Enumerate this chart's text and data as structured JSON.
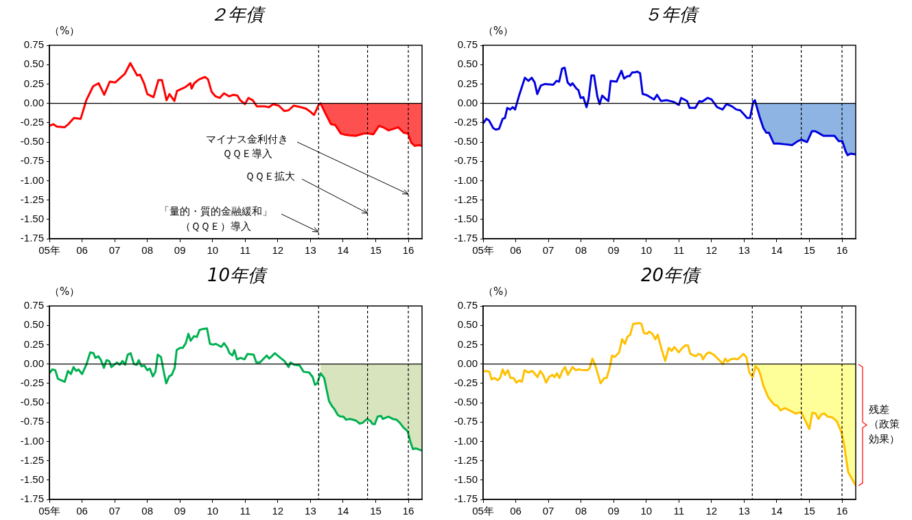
{
  "chart_data": [
    {
      "type": "line",
      "title": "２年債",
      "ylabel": "（%）",
      "xlim": [
        5,
        16.42
      ],
      "ylim": [
        -1.75,
        0.75
      ],
      "xticks": [
        {
          "value": 5,
          "label": "05年"
        },
        {
          "value": 6,
          "label": "06"
        },
        {
          "value": 7,
          "label": "07"
        },
        {
          "value": 8,
          "label": "08"
        },
        {
          "value": 9,
          "label": "09"
        },
        {
          "value": 10,
          "label": "10"
        },
        {
          "value": 11,
          "label": "11"
        },
        {
          "value": 12,
          "label": "12"
        },
        {
          "value": 13,
          "label": "13"
        },
        {
          "value": 14,
          "label": "14"
        },
        {
          "value": 15,
          "label": "15"
        },
        {
          "value": 16,
          "label": "16"
        }
      ],
      "yticks": [
        {
          "value": 0.75,
          "label": "0.75"
        },
        {
          "value": 0.5,
          "label": "0.50"
        },
        {
          "value": 0.25,
          "label": "0.25"
        },
        {
          "value": 0,
          "label": "0.00"
        },
        {
          "value": -0.25,
          "label": "-0.25"
        },
        {
          "value": -0.5,
          "label": "-0.50"
        },
        {
          "value": -0.75,
          "label": "-0.75"
        },
        {
          "value": -1,
          "label": "-1.00"
        },
        {
          "value": -1.25,
          "label": "-1.25"
        },
        {
          "value": -1.5,
          "label": "-1.50"
        },
        {
          "value": -1.75,
          "label": "-1.75"
        }
      ],
      "series": [
        {
          "type": "line",
          "color": "#ff0000",
          "x": [
            5,
            5.12,
            5.23,
            5.46,
            5.58,
            5.75,
            5.96,
            6.13,
            6.34,
            6.51,
            6.68,
            6.85,
            7.02,
            7.31,
            7.48,
            7.69,
            7.78,
            7.9,
            8,
            8.19,
            8.34,
            8.45,
            8.59,
            8.68,
            8.83,
            8.91,
            9.17,
            9.32,
            9.36,
            9.44,
            9.59,
            9.77,
            9.86,
            9.97,
            10.09,
            10.22,
            10.35,
            10.51,
            10.64,
            10.76,
            10.85,
            10.99,
            11.1,
            11.23,
            11.36,
            11.61,
            11.73,
            11.86,
            12.03,
            12.2,
            12.33,
            12.49,
            12.71,
            12.87,
            13,
            13.11,
            13.25,
            13.31,
            13.46,
            13.63,
            13.76,
            13.93,
            14.09,
            14.39,
            14.64,
            14.76,
            14.93,
            15.1,
            15.23,
            15.39,
            15.69,
            15.86,
            15.99,
            16.09,
            16.2,
            16.32,
            16.42
          ],
          "values": [
            -0.29,
            -0.27,
            -0.3,
            -0.31,
            -0.27,
            -0.19,
            -0.2,
            0.04,
            0.22,
            0.26,
            0.11,
            0.28,
            0.27,
            0.38,
            0.52,
            0.36,
            0.37,
            0.26,
            0.12,
            0.08,
            0.3,
            0.3,
            0.04,
            0.12,
            0.03,
            0.16,
            0.21,
            0.26,
            0.19,
            0.26,
            0.31,
            0.34,
            0.31,
            0.15,
            0.09,
            0.07,
            0.13,
            0.09,
            0.11,
            0.1,
            0.04,
            -0.01,
            0.07,
            0.04,
            -0.04,
            -0.04,
            -0.05,
            -0.01,
            -0.03,
            -0.1,
            -0.09,
            -0.03,
            -0.05,
            -0.07,
            -0.11,
            -0.15,
            -0.02,
            0,
            -0.13,
            -0.27,
            -0.28,
            -0.39,
            -0.41,
            -0.42,
            -0.39,
            -0.39,
            -0.4,
            -0.29,
            -0.31,
            -0.35,
            -0.31,
            -0.38,
            -0.39,
            -0.51,
            -0.55,
            -0.54,
            -0.55
          ]
        },
        {
          "type": "area",
          "color": "#ff5050",
          "x": [
            13.25,
            13.31,
            13.46,
            13.63,
            13.76,
            13.93,
            14.09,
            14.39,
            14.64,
            14.76,
            14.93,
            15.1,
            15.23,
            15.39,
            15.69,
            15.86,
            15.99,
            16.09,
            16.2,
            16.32,
            16.42
          ],
          "values": [
            -0.02,
            0,
            -0.13,
            -0.27,
            -0.28,
            -0.39,
            -0.41,
            -0.42,
            -0.39,
            -0.39,
            -0.4,
            -0.29,
            -0.31,
            -0.35,
            -0.31,
            -0.38,
            -0.39,
            -0.51,
            -0.55,
            -0.54,
            -0.55
          ]
        }
      ],
      "ref_lines": [
        {
          "axis": "y",
          "value": 0,
          "color": "#000000",
          "line_style": "solid"
        },
        {
          "axis": "x",
          "value": 13.25,
          "color": "#000000",
          "line_style": "dashed"
        },
        {
          "axis": "x",
          "value": 14.75,
          "color": "#000000",
          "line_style": "dashed"
        },
        {
          "axis": "x",
          "value": 16,
          "color": "#000000",
          "line_style": "dashed"
        }
      ],
      "annotations": [
        {
          "text": "マイナス金利付きＱＱＥ導入",
          "x": 16,
          "y": -1.17
        },
        {
          "text": "ＱＱＥ拡大",
          "x": 14.75,
          "y": -1.42
        },
        {
          "text": "「量的・質的金融緩和」（ＱＱＥ）導入",
          "x": 13.25,
          "y": -1.66
        }
      ]
    },
    {
      "type": "line",
      "title": "５年債",
      "ylabel": "（%）",
      "xlim": [
        5,
        16.42
      ],
      "ylim": [
        -1.75,
        0.75
      ],
      "xticks": [
        {
          "value": 5,
          "label": "05年"
        },
        {
          "value": 6,
          "label": "06"
        },
        {
          "value": 7,
          "label": "07"
        },
        {
          "value": 8,
          "label": "08"
        },
        {
          "value": 9,
          "label": "09"
        },
        {
          "value": 10,
          "label": "10"
        },
        {
          "value": 11,
          "label": "11"
        },
        {
          "value": 12,
          "label": "12"
        },
        {
          "value": 13,
          "label": "13"
        },
        {
          "value": 14,
          "label": "14"
        },
        {
          "value": 15,
          "label": "15"
        },
        {
          "value": 16,
          "label": "16"
        }
      ],
      "yticks": [
        {
          "value": 0.75,
          "label": "0.75"
        },
        {
          "value": 0.5,
          "label": "0.50"
        },
        {
          "value": 0.25,
          "label": "0.25"
        },
        {
          "value": 0,
          "label": "0.00"
        },
        {
          "value": -0.25,
          "label": "-0.25"
        },
        {
          "value": -0.5,
          "label": "-0.50"
        },
        {
          "value": -0.75,
          "label": "-0.75"
        },
        {
          "value": -1,
          "label": "-1.00"
        },
        {
          "value": -1.25,
          "label": "-1.25"
        },
        {
          "value": -1.5,
          "label": "-1.50"
        },
        {
          "value": -1.75,
          "label": "-1.75"
        }
      ],
      "series": [
        {
          "type": "line",
          "color": "#0000e0",
          "x": [
            5,
            5.1,
            5.18,
            5.31,
            5.39,
            5.49,
            5.6,
            5.67,
            5.74,
            5.83,
            5.91,
            5.98,
            6.11,
            6.28,
            6.39,
            6.49,
            6.58,
            6.66,
            6.77,
            6.9,
            7.15,
            7.25,
            7.33,
            7.42,
            7.5,
            7.59,
            7.68,
            7.74,
            7.86,
            7.92,
            7.99,
            8.07,
            8.17,
            8.23,
            8.32,
            8.4,
            8.5,
            8.57,
            8.65,
            8.75,
            8.84,
            8.91,
            9.09,
            9.24,
            9.32,
            9.42,
            9.49,
            9.57,
            9.66,
            9.72,
            9.81,
            9.89,
            9.99,
            10.08,
            10.24,
            10.33,
            10.45,
            10.62,
            10.83,
            11,
            11.07,
            11.25,
            11.33,
            11.5,
            11.63,
            11.71,
            11.88,
            12,
            12.17,
            12.34,
            12.46,
            12.63,
            12.76,
            12.88,
            13.01,
            13.09,
            13.18,
            13.28,
            13.33,
            13.47,
            13.59,
            13.68,
            13.76,
            13.91,
            14.05,
            14.26,
            14.47,
            14.64,
            14.75,
            14.81,
            14.93,
            15.08,
            15.18,
            15.31,
            15.43,
            15.56,
            15.77,
            15.9,
            16.01,
            16.11,
            16.17,
            16.27,
            16.42
          ],
          "values": [
            -0.26,
            -0.2,
            -0.22,
            -0.32,
            -0.34,
            -0.33,
            -0.2,
            -0.19,
            -0.06,
            -0.08,
            -0.05,
            -0.08,
            0.11,
            0.33,
            0.29,
            0.33,
            0.27,
            0.12,
            0.23,
            0.25,
            0.24,
            0.29,
            0.28,
            0.45,
            0.46,
            0.27,
            0.23,
            0.26,
            0.19,
            0.17,
            0.07,
            0.08,
            -0.05,
            0.05,
            0.36,
            0.36,
            0.09,
            -0.01,
            0.1,
            0.06,
            0.03,
            0.29,
            0.28,
            0.42,
            0.32,
            0.35,
            0.35,
            0.4,
            0.4,
            0.41,
            0.39,
            0.12,
            0.11,
            0.09,
            0.05,
            0.11,
            0.03,
            0.04,
            0.02,
            -0.02,
            0.07,
            0.03,
            -0.06,
            -0.06,
            0.03,
            0.02,
            0.07,
            0.05,
            -0.05,
            -0.08,
            -0.01,
            -0.04,
            -0.08,
            -0.09,
            -0.15,
            -0.19,
            -0.19,
            0.02,
            0.04,
            -0.17,
            -0.32,
            -0.38,
            -0.38,
            -0.52,
            -0.52,
            -0.53,
            -0.54,
            -0.49,
            -0.47,
            -0.48,
            -0.5,
            -0.36,
            -0.36,
            -0.39,
            -0.42,
            -0.42,
            -0.42,
            -0.49,
            -0.49,
            -0.62,
            -0.67,
            -0.65,
            -0.66
          ]
        },
        {
          "type": "area",
          "color": "#8db4e2",
          "x": [
            13.28,
            13.33,
            13.47,
            13.59,
            13.68,
            13.76,
            13.91,
            14.05,
            14.26,
            14.47,
            14.64,
            14.75,
            14.81,
            14.93,
            15.08,
            15.18,
            15.31,
            15.43,
            15.56,
            15.77,
            15.9,
            16.01,
            16.11,
            16.17,
            16.27,
            16.42
          ],
          "values": [
            0.02,
            0.04,
            -0.17,
            -0.32,
            -0.38,
            -0.38,
            -0.52,
            -0.52,
            -0.53,
            -0.54,
            -0.49,
            -0.47,
            -0.48,
            -0.5,
            -0.36,
            -0.36,
            -0.39,
            -0.42,
            -0.42,
            -0.42,
            -0.49,
            -0.49,
            -0.62,
            -0.67,
            -0.65,
            -0.66
          ]
        }
      ],
      "ref_lines": [
        {
          "axis": "y",
          "value": 0,
          "color": "#000000",
          "line_style": "solid"
        },
        {
          "axis": "x",
          "value": 13.25,
          "color": "#000000",
          "line_style": "dashed"
        },
        {
          "axis": "x",
          "value": 14.75,
          "color": "#000000",
          "line_style": "dashed"
        },
        {
          "axis": "x",
          "value": 16,
          "color": "#000000",
          "line_style": "dashed"
        }
      ]
    },
    {
      "type": "line",
      "title": "10年債",
      "ylabel": "（%）",
      "xlim": [
        5,
        16.42
      ],
      "ylim": [
        -1.75,
        0.75
      ],
      "xticks": [
        {
          "value": 5,
          "label": "05年"
        },
        {
          "value": 6,
          "label": "06"
        },
        {
          "value": 7,
          "label": "07"
        },
        {
          "value": 8,
          "label": "08"
        },
        {
          "value": 9,
          "label": "09"
        },
        {
          "value": 10,
          "label": "10"
        },
        {
          "value": 11,
          "label": "11"
        },
        {
          "value": 12,
          "label": "12"
        },
        {
          "value": 13,
          "label": "13"
        },
        {
          "value": 14,
          "label": "14"
        },
        {
          "value": 15,
          "label": "15"
        },
        {
          "value": 16,
          "label": "16"
        }
      ],
      "yticks": [
        {
          "value": 0.75,
          "label": "0.75"
        },
        {
          "value": 0.5,
          "label": "0.50"
        },
        {
          "value": 0.25,
          "label": "0.25"
        },
        {
          "value": 0,
          "label": "0.00"
        },
        {
          "value": -0.25,
          "label": "-0.25"
        },
        {
          "value": -0.5,
          "label": "-0.50"
        },
        {
          "value": -0.75,
          "label": "-0.75"
        },
        {
          "value": -1,
          "label": "-1.00"
        },
        {
          "value": -1.25,
          "label": "-1.25"
        },
        {
          "value": -1.5,
          "label": "-1.50"
        },
        {
          "value": -1.75,
          "label": "-1.75"
        }
      ],
      "series": [
        {
          "type": "line",
          "color": "#00b050",
          "x": [
            5,
            5.09,
            5.18,
            5.26,
            5.47,
            5.57,
            5.66,
            5.74,
            5.82,
            5.89,
            6,
            6.14,
            6.25,
            6.35,
            6.41,
            6.5,
            6.58,
            6.67,
            6.75,
            6.83,
            6.9,
            7.07,
            7.15,
            7.24,
            7.32,
            7.4,
            7.49,
            7.59,
            7.67,
            7.74,
            7.82,
            7.91,
            8,
            8.08,
            8.17,
            8.25,
            8.32,
            8.42,
            8.5,
            8.58,
            8.67,
            8.75,
            8.84,
            8.9,
            9.01,
            9.09,
            9.18,
            9.26,
            9.33,
            9.43,
            9.52,
            9.6,
            9.68,
            9.83,
            9.92,
            10.02,
            10.1,
            10.27,
            10.35,
            10.45,
            10.52,
            10.61,
            10.67,
            10.75,
            10.86,
            10.98,
            11.07,
            11.26,
            11.34,
            11.45,
            11.66,
            11.74,
            11.91,
            12.08,
            12.2,
            12.33,
            12.39,
            12.5,
            12.67,
            12.79,
            12.96,
            13.07,
            13.14,
            13.21,
            13.31,
            13.42,
            13.57,
            13.67,
            13.73,
            13.84,
            13.92,
            14.01,
            14.09,
            14.22,
            14.39,
            14.51,
            14.6,
            14.74,
            14.85,
            14.89,
            14.97,
            15.06,
            15.16,
            15.22,
            15.39,
            15.52,
            15.64,
            15.74,
            15.85,
            15.98,
            16.06,
            16.14,
            16.23,
            16.42
          ],
          "values": [
            -0.12,
            -0.07,
            -0.08,
            -0.19,
            -0.23,
            -0.09,
            -0.13,
            -0.04,
            -0.09,
            -0.07,
            -0.13,
            0,
            0.15,
            0.14,
            0.08,
            0.1,
            0.05,
            -0.05,
            0.05,
            0.04,
            -0.04,
            0.02,
            -0.01,
            0.04,
            -0.01,
            0.12,
            0.14,
            0,
            -0.01,
            0.05,
            -0.03,
            -0.02,
            -0.08,
            -0.06,
            -0.16,
            -0.1,
            0.12,
            0.09,
            -0.09,
            -0.25,
            -0.16,
            -0.14,
            -0.05,
            0.18,
            0.21,
            0.21,
            0.27,
            0.39,
            0.3,
            0.36,
            0.35,
            0.44,
            0.45,
            0.46,
            0.26,
            0.25,
            0.26,
            0.22,
            0.27,
            0.21,
            0.14,
            0.11,
            0.18,
            0.06,
            0.08,
            0.06,
            0.13,
            0.12,
            0.02,
            0.02,
            0.11,
            0.07,
            0.14,
            0.08,
            0.04,
            -0.04,
            0.02,
            -0.01,
            -0.02,
            -0.1,
            -0.11,
            -0.17,
            -0.27,
            -0.25,
            -0.12,
            -0.18,
            -0.48,
            -0.55,
            -0.58,
            -0.66,
            -0.68,
            -0.68,
            -0.72,
            -0.71,
            -0.73,
            -0.77,
            -0.76,
            -0.71,
            -0.74,
            -0.77,
            -0.78,
            -0.68,
            -0.67,
            -0.71,
            -0.68,
            -0.71,
            -0.72,
            -0.76,
            -0.82,
            -0.87,
            -1,
            -1.1,
            -1.09,
            -1.12
          ]
        },
        {
          "type": "area",
          "color": "#d7e4bd",
          "x": [
            13.31,
            13.42,
            13.57,
            13.67,
            13.73,
            13.84,
            13.92,
            14.01,
            14.09,
            14.22,
            14.39,
            14.51,
            14.6,
            14.74,
            14.85,
            14.89,
            14.97,
            15.06,
            15.16,
            15.22,
            15.39,
            15.52,
            15.64,
            15.74,
            15.85,
            15.98,
            16.06,
            16.14,
            16.23,
            16.42
          ],
          "values": [
            -0.12,
            -0.18,
            -0.48,
            -0.55,
            -0.58,
            -0.66,
            -0.68,
            -0.68,
            -0.72,
            -0.71,
            -0.73,
            -0.77,
            -0.76,
            -0.71,
            -0.74,
            -0.77,
            -0.78,
            -0.68,
            -0.67,
            -0.71,
            -0.68,
            -0.71,
            -0.72,
            -0.76,
            -0.82,
            -0.87,
            -1,
            -1.1,
            -1.09,
            -1.12
          ]
        }
      ],
      "ref_lines": [
        {
          "axis": "y",
          "value": 0,
          "color": "#000000",
          "line_style": "solid"
        },
        {
          "axis": "x",
          "value": 13.25,
          "color": "#000000",
          "line_style": "dashed"
        },
        {
          "axis": "x",
          "value": 14.75,
          "color": "#000000",
          "line_style": "dashed"
        },
        {
          "axis": "x",
          "value": 16,
          "color": "#000000",
          "line_style": "dashed"
        }
      ]
    },
    {
      "type": "line",
      "title": "20年債",
      "ylabel": "（%）",
      "xlim": [
        5,
        16.42
      ],
      "ylim": [
        -1.75,
        0.75
      ],
      "xticks": [
        {
          "value": 5,
          "label": "05年"
        },
        {
          "value": 6,
          "label": "06"
        },
        {
          "value": 7,
          "label": "07"
        },
        {
          "value": 8,
          "label": "08"
        },
        {
          "value": 9,
          "label": "09"
        },
        {
          "value": 10,
          "label": "10"
        },
        {
          "value": 11,
          "label": "11"
        },
        {
          "value": 12,
          "label": "12"
        },
        {
          "value": 13,
          "label": "13"
        },
        {
          "value": 14,
          "label": "14"
        },
        {
          "value": 15,
          "label": "15"
        },
        {
          "value": 16,
          "label": "16"
        }
      ],
      "yticks": [
        {
          "value": 0.75,
          "label": "0.75"
        },
        {
          "value": 0.5,
          "label": "0.50"
        },
        {
          "value": 0.25,
          "label": "0.25"
        },
        {
          "value": 0,
          "label": "0.00"
        },
        {
          "value": -0.25,
          "label": "-0.25"
        },
        {
          "value": -0.5,
          "label": "-0.50"
        },
        {
          "value": -0.75,
          "label": "-0.75"
        },
        {
          "value": -1,
          "label": "-1.00"
        },
        {
          "value": -1.25,
          "label": "-1.25"
        },
        {
          "value": -1.5,
          "label": "-1.50"
        },
        {
          "value": -1.75,
          "label": "-1.75"
        }
      ],
      "series": [
        {
          "type": "line",
          "color": "#ffc000",
          "x": [
            5,
            5.09,
            5.19,
            5.26,
            5.35,
            5.45,
            5.52,
            5.6,
            5.67,
            5.76,
            5.84,
            5.93,
            6.02,
            6.12,
            6.19,
            6.27,
            6.38,
            6.51,
            6.67,
            6.75,
            6.84,
            6.93,
            7.02,
            7.12,
            7.19,
            7.26,
            7.34,
            7.44,
            7.51,
            7.6,
            7.74,
            7.84,
            7.93,
            8.07,
            8.21,
            8.27,
            8.35,
            8.44,
            8.6,
            8.72,
            8.79,
            8.89,
            8.95,
            9.03,
            9.17,
            9.26,
            9.35,
            9.42,
            9.51,
            9.6,
            9.67,
            9.77,
            9.85,
            9.93,
            10.02,
            10.09,
            10.19,
            10.28,
            10.35,
            10.47,
            10.58,
            10.69,
            10.78,
            10.86,
            11,
            11.09,
            11.19,
            11.28,
            11.35,
            11.51,
            11.6,
            11.68,
            11.74,
            11.84,
            11.93,
            12.07,
            12.26,
            12.35,
            12.42,
            12.49,
            12.58,
            12.7,
            12.8,
            12.98,
            13.07,
            13.16,
            13.26,
            13.35,
            13.44,
            13.51,
            13.58,
            13.74,
            13.83,
            13.93,
            14.02,
            14.11,
            14.25,
            14.44,
            14.58,
            14.75,
            14.86,
            15,
            15.09,
            15.19,
            15.28,
            15.37,
            15.46,
            15.56,
            15.7,
            15.84,
            15.98,
            16.07,
            16.19,
            16.3,
            16.42
          ],
          "values": [
            -0.1,
            -0.09,
            -0.1,
            -0.2,
            -0.18,
            -0.21,
            -0.18,
            -0.07,
            -0.14,
            -0.08,
            -0.18,
            -0.18,
            -0.24,
            -0.21,
            -0.23,
            -0.08,
            -0.11,
            -0.09,
            -0.17,
            -0.09,
            -0.14,
            -0.24,
            -0.17,
            -0.14,
            -0.17,
            -0.12,
            -0.18,
            -0.08,
            -0.04,
            -0.14,
            -0.04,
            -0.08,
            -0.07,
            -0.08,
            -0.08,
            -0.05,
            0.07,
            -0.02,
            -0.25,
            -0.18,
            -0.18,
            -0.03,
            0.11,
            0.09,
            0.15,
            0.32,
            0.26,
            0.35,
            0.38,
            0.52,
            0.52,
            0.53,
            0.52,
            0.4,
            0.39,
            0.42,
            0.39,
            0.32,
            0.38,
            0.19,
            0.04,
            0.21,
            0.17,
            0.22,
            0.15,
            0.2,
            0.24,
            0.24,
            0.13,
            0.1,
            0.13,
            0.12,
            0.06,
            0.13,
            0.15,
            0.12,
            0.04,
            0,
            0.07,
            0.03,
            0.06,
            0.07,
            0.06,
            0.13,
            0.09,
            -0.11,
            -0.17,
            -0.03,
            -0.07,
            -0.15,
            -0.27,
            -0.43,
            -0.48,
            -0.53,
            -0.54,
            -0.6,
            -0.57,
            -0.61,
            -0.64,
            -0.62,
            -0.72,
            -0.84,
            -0.63,
            -0.64,
            -0.71,
            -0.65,
            -0.64,
            -0.68,
            -0.69,
            -0.74,
            -0.88,
            -1.06,
            -1.4,
            -1.48,
            -1.57
          ]
        },
        {
          "type": "area",
          "color": "#ffff99",
          "x": [
            13.26,
            13.35,
            13.44,
            13.51,
            13.58,
            13.74,
            13.83,
            13.93,
            14.02,
            14.11,
            14.25,
            14.44,
            14.58,
            14.75,
            14.86,
            15,
            15.09,
            15.19,
            15.28,
            15.37,
            15.46,
            15.56,
            15.7,
            15.84,
            15.98,
            16.07,
            16.19,
            16.3,
            16.42
          ],
          "values": [
            -0.17,
            -0.03,
            -0.07,
            -0.15,
            -0.27,
            -0.43,
            -0.48,
            -0.53,
            -0.54,
            -0.6,
            -0.57,
            -0.61,
            -0.64,
            -0.62,
            -0.72,
            -0.84,
            -0.63,
            -0.64,
            -0.71,
            -0.65,
            -0.64,
            -0.68,
            -0.69,
            -0.74,
            -0.88,
            -1.06,
            -1.4,
            -1.48,
            -1.57
          ]
        }
      ],
      "ref_lines": [
        {
          "axis": "y",
          "value": 0,
          "color": "#000000",
          "line_style": "solid"
        },
        {
          "axis": "x",
          "value": 13.25,
          "color": "#000000",
          "line_style": "dashed"
        },
        {
          "axis": "x",
          "value": 14.75,
          "color": "#000000",
          "line_style": "dashed"
        },
        {
          "axis": "x",
          "value": 16,
          "color": "#000000",
          "line_style": "dashed"
        }
      ],
      "annotations": [
        "残差（政策効果）"
      ]
    }
  ]
}
